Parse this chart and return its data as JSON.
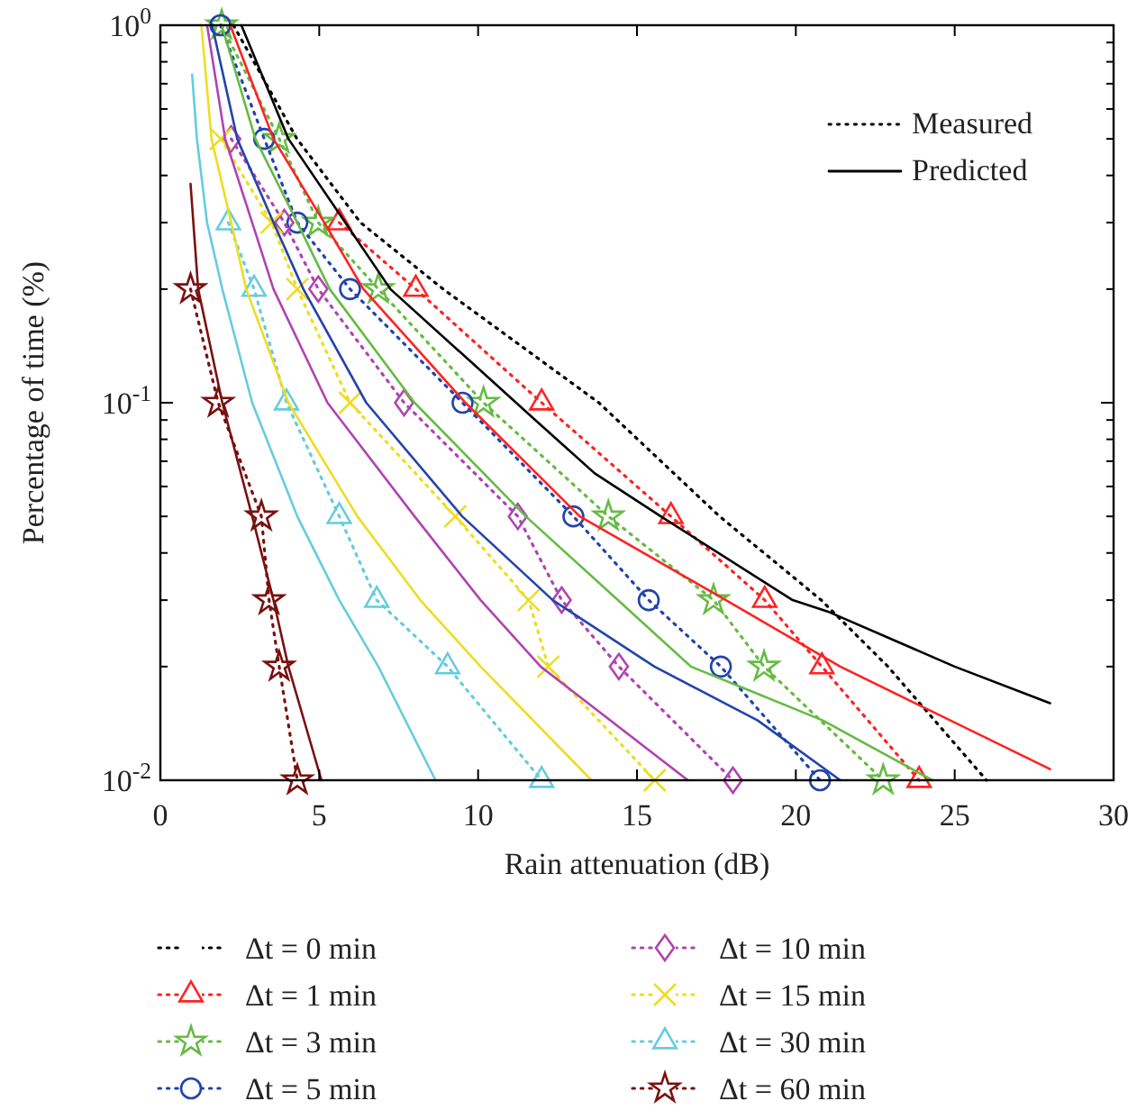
{
  "chart_data": {
    "type": "line",
    "xlabel": "Rain attenuation (dB)",
    "ylabel": "Percentage of time (%)",
    "xlim": [
      0,
      30
    ],
    "xticks": [
      0,
      5,
      10,
      15,
      20,
      25,
      30
    ],
    "ylim": [
      0.01,
      1
    ],
    "log": "y",
    "grid": false,
    "legend": "bottom",
    "yticks": [
      {
        "value": 0.01,
        "label": "10$^{-2}$"
      },
      {
        "value": 0.02,
        "label": null
      },
      {
        "value": 0.03,
        "label": null
      },
      {
        "value": 0.04,
        "label": null
      },
      {
        "value": 0.05,
        "label": null
      },
      {
        "value": 0.06,
        "label": null
      },
      {
        "value": 0.07,
        "label": null
      },
      {
        "value": 0.08,
        "label": null
      },
      {
        "value": 0.09,
        "label": null
      },
      {
        "value": 0.1,
        "label": "10$^{-1}$"
      },
      {
        "value": 0.2,
        "label": null
      },
      {
        "value": 0.3,
        "label": null
      },
      {
        "value": 0.4,
        "label": null
      },
      {
        "value": 0.5,
        "label": null
      },
      {
        "value": 0.6,
        "label": null
      },
      {
        "value": 0.7,
        "label": null
      },
      {
        "value": 0.8,
        "label": null
      },
      {
        "value": 0.9,
        "label": null
      },
      {
        "value": 1,
        "label": "10$^{0}$"
      }
    ],
    "annotations": [
      "Measured",
      "Predicted"
    ],
    "series": [
      {
        "name": "Δt = 0 min",
        "color": "#000000",
        "line_style": "dotted",
        "marker": "none",
        "x": [
          2.3,
          4.3,
          6.3,
          8.9,
          13.8,
          17.6,
          20.8,
          22.9,
          26.0
        ],
        "values": [
          1,
          0.5,
          0.3,
          0.2,
          0.1,
          0.05,
          0.03,
          0.02,
          0.01
        ]
      },
      {
        "name": "Δt = 1 min",
        "color": "#ff2222",
        "line_style": "dotted",
        "marker": "triangle",
        "x": [
          5.63,
          8.04,
          12.0,
          16.07,
          19.02,
          20.82,
          23.88
        ],
        "values": [
          0.3,
          0.2,
          0.1,
          0.05,
          0.03,
          0.02,
          0.01
        ]
      },
      {
        "name": "Δt = 3 min",
        "color": "#66bb44",
        "line_style": "dotted",
        "marker": "star",
        "x": [
          1.93,
          3.74,
          4.97,
          6.86,
          10.17,
          14.1,
          17.41,
          19.0,
          22.75
        ],
        "values": [
          1,
          0.5,
          0.3,
          0.2,
          0.1,
          0.05,
          0.03,
          0.02,
          0.01
        ]
      },
      {
        "name": "Δt = 5 min",
        "color": "#2244aa",
        "line_style": "dotted",
        "marker": "circle",
        "x": [
          1.89,
          3.27,
          4.31,
          5.97,
          9.51,
          13.0,
          15.37,
          17.64,
          20.76
        ],
        "values": [
          1,
          0.5,
          0.3,
          0.2,
          0.1,
          0.05,
          0.03,
          0.02,
          0.01
        ]
      },
      {
        "name": "Δt = 10 min",
        "color": "#b044b0",
        "line_style": "dotted",
        "marker": "diamond",
        "x": [
          2.23,
          3.9,
          4.97,
          7.67,
          11.25,
          12.63,
          14.43,
          18.02
        ],
        "values": [
          0.5,
          0.3,
          0.2,
          0.1,
          0.05,
          0.03,
          0.02,
          0.01
        ]
      },
      {
        "name": "Δt = 15 min",
        "color": "#eedd22",
        "line_style": "dotted",
        "marker": "cross",
        "x": [
          1.9,
          3.5,
          4.31,
          5.97,
          9.28,
          11.59,
          12.21,
          15.56
        ],
        "values": [
          0.5,
          0.3,
          0.2,
          0.1,
          0.05,
          0.03,
          0.02,
          0.01
        ]
      },
      {
        "name": "Δt = 30 min",
        "color": "#66ccdd",
        "line_style": "dotted",
        "marker": "triangle",
        "x": [
          2.14,
          2.95,
          3.97,
          5.63,
          6.81,
          9.04,
          12.0
        ],
        "values": [
          0.3,
          0.2,
          0.1,
          0.05,
          0.03,
          0.02,
          0.01
        ]
      },
      {
        "name": "Δt = 60 min",
        "color": "#7a1010",
        "line_style": "dotted",
        "marker": "star",
        "x": [
          0.95,
          1.82,
          3.18,
          3.42,
          3.74,
          4.31
        ],
        "values": [
          0.2,
          0.1,
          0.05,
          0.03,
          0.02,
          0.01
        ]
      },
      {
        "color": "#000000",
        "line_style": "solid",
        "marker": "none",
        "x": [
          2.55,
          4.03,
          5.82,
          7.24,
          11.8,
          13.67,
          15.75,
          19.9,
          21.0,
          25.0,
          28.0
        ],
        "values": [
          1,
          0.5,
          0.3,
          0.2,
          0.09,
          0.065,
          0.05,
          0.03,
          0.028,
          0.02,
          0.016
        ]
      },
      {
        "color": "#ff2222",
        "line_style": "solid",
        "marker": "none",
        "x": [
          2.2,
          3.56,
          5.16,
          6.39,
          9.6,
          13.2,
          17.8,
          21.4,
          28.0
        ],
        "values": [
          1,
          0.5,
          0.3,
          0.2,
          0.1,
          0.05,
          0.03,
          0.02,
          0.0107
        ]
      },
      {
        "color": "#66bb44",
        "line_style": "solid",
        "marker": "none",
        "x": [
          1.93,
          2.99,
          4.31,
          5.33,
          8.0,
          11.5,
          14.4,
          16.7,
          20.85,
          24.3
        ],
        "values": [
          1,
          0.5,
          0.3,
          0.2,
          0.1,
          0.05,
          0.03,
          0.02,
          0.0144,
          0.01
        ]
      },
      {
        "color": "#2244aa",
        "line_style": "solid",
        "marker": "none",
        "x": [
          1.63,
          2.42,
          3.56,
          4.5,
          6.48,
          9.5,
          12.35,
          15.55,
          18.8,
          21.4
        ],
        "values": [
          1,
          0.5,
          0.3,
          0.2,
          0.1,
          0.05,
          0.03,
          0.02,
          0.0144,
          0.01
        ]
      },
      {
        "color": "#b044b0",
        "line_style": "solid",
        "marker": "none",
        "x": [
          1.47,
          2.04,
          2.89,
          3.56,
          5.26,
          8.0,
          10.08,
          11.97,
          16.6
        ],
        "values": [
          1,
          0.5,
          0.3,
          0.2,
          0.1,
          0.05,
          0.03,
          0.02,
          0.01
        ]
      },
      {
        "color": "#eedd22",
        "line_style": "solid",
        "marker": "none",
        "x": [
          1.29,
          1.61,
          2.23,
          2.7,
          4.03,
          6.2,
          8.18,
          10.08,
          13.57
        ],
        "values": [
          1,
          0.5,
          0.3,
          0.2,
          0.1,
          0.05,
          0.03,
          0.02,
          0.01
        ]
      },
      {
        "color": "#66ccdd",
        "line_style": "solid",
        "marker": "none",
        "x": [
          1.0,
          1.15,
          1.47,
          1.95,
          2.89,
          4.31,
          5.63,
          6.86,
          8.66
        ],
        "values": [
          0.74,
          0.5,
          0.3,
          0.2,
          0.1,
          0.05,
          0.03,
          0.02,
          0.01
        ]
      },
      {
        "color": "#7a1010",
        "line_style": "solid",
        "marker": "none",
        "x": [
          0.95,
          1.19,
          1.95,
          2.89,
          3.56,
          4.03,
          5.07
        ],
        "values": [
          0.38,
          0.2,
          0.1,
          0.05,
          0.03,
          0.02,
          0.01
        ]
      }
    ]
  }
}
